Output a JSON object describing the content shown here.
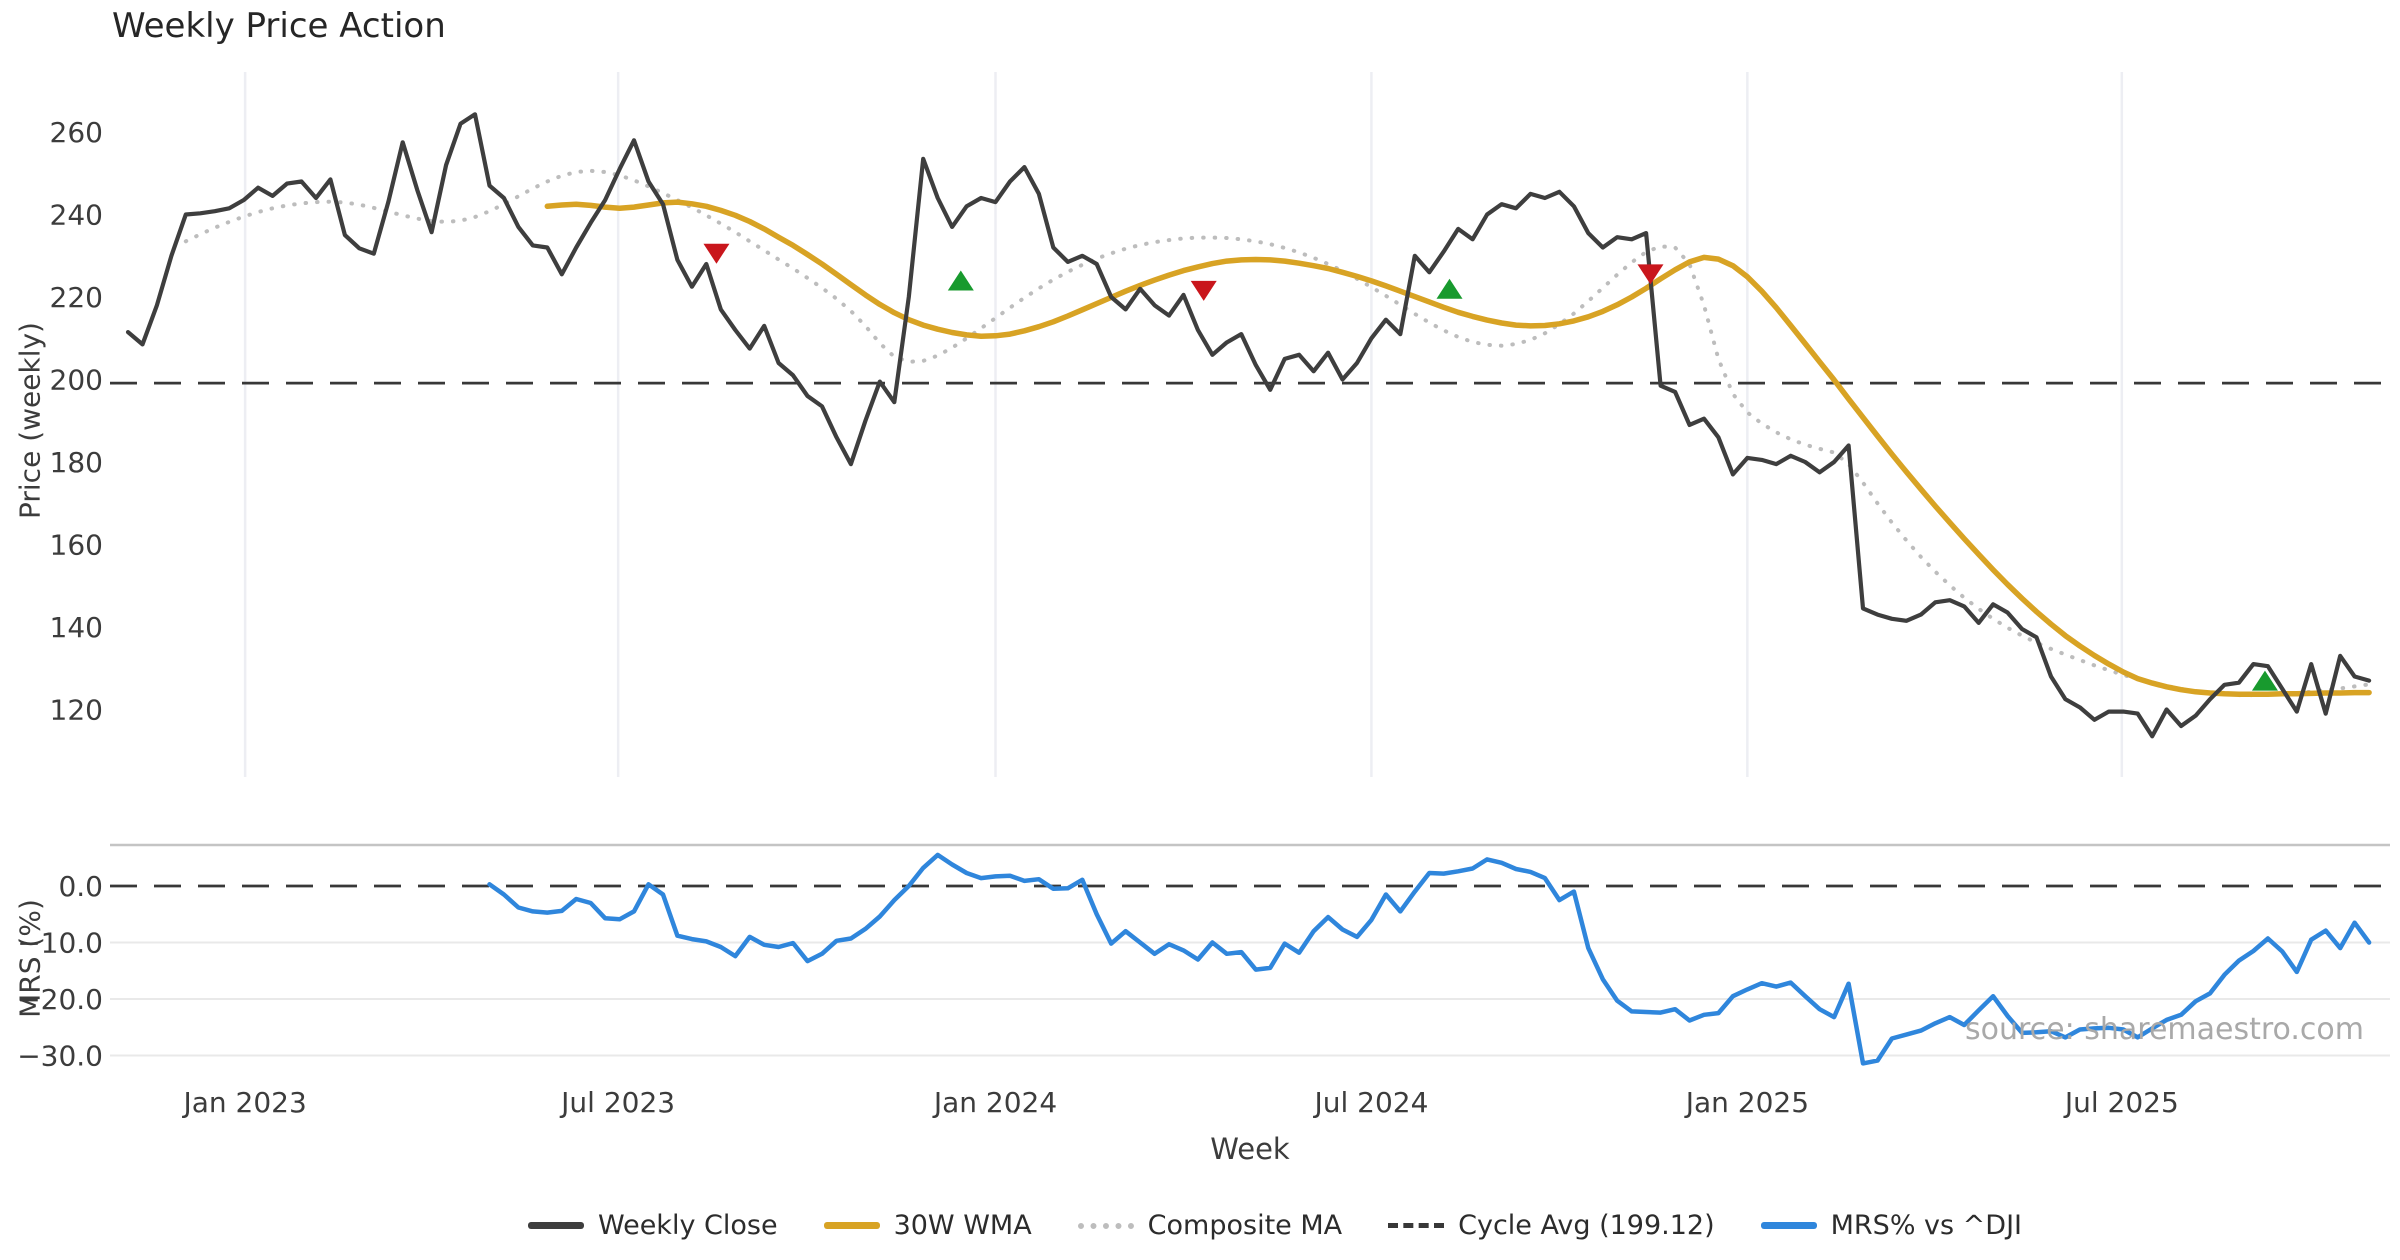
{
  "title": "Weekly Price Action",
  "watermark": "source: sharemaestro.com",
  "colors": {
    "weekly_close": "#3e3e3e",
    "wma30": "#d8a324",
    "composite_ma": "#bdbdbd",
    "cycle_avg": "#383838",
    "mrs": "#2f86dc",
    "buy_marker": "#189a2e",
    "sell_marker": "#c9161c",
    "grid_vertical": "#edeef3",
    "grid_horizontal": "#e9e9e9",
    "panel_spine": "#c4c4c4",
    "tick_text": "#3c3c3c"
  },
  "axes": {
    "x_label": "Week",
    "x_ticks": [
      {
        "week": 8.1,
        "label": "Jan 2023"
      },
      {
        "week": 33.9,
        "label": "Jul 2023"
      },
      {
        "week": 60.0,
        "label": "Jan 2024"
      },
      {
        "week": 86.0,
        "label": "Jul 2024"
      },
      {
        "week": 112.0,
        "label": "Jan 2025"
      },
      {
        "week": 137.9,
        "label": "Jul 2025"
      }
    ]
  },
  "legend": {
    "items": [
      {
        "label": "Weekly Close",
        "swatch": "solid",
        "color": "#3e3e3e"
      },
      {
        "label": "30W WMA",
        "swatch": "solid",
        "color": "#d8a324"
      },
      {
        "label": "Composite MA",
        "swatch": "dotted",
        "color": "#bdbdbd"
      },
      {
        "label": "Cycle Avg (199.12)",
        "swatch": "dashed",
        "color": "#383838"
      },
      {
        "label": "MRS% vs ^DJI",
        "swatch": "solid",
        "color": "#2f86dc"
      }
    ]
  },
  "chart_data": [
    {
      "type": "line",
      "panel": "price",
      "title": "Weekly Price Action",
      "xlabel": "Week",
      "ylabel": "Price (weekly)",
      "ylim": [
        103,
        274
      ],
      "yticks": [
        260,
        240,
        220,
        200,
        180,
        160,
        140,
        120
      ],
      "cycle_avg": 199.12,
      "x_unit": "weeks from Nov 2022",
      "series": [
        {
          "name": "Weekly Close",
          "start_week": 0,
          "values": [
            211.5,
            208.5,
            218,
            230,
            240,
            240.3,
            240.8,
            241.5,
            243.5,
            246.5,
            244.5,
            247.5,
            248,
            244,
            248.5,
            235,
            231.8,
            230.5,
            243,
            257.5,
            246,
            235.7,
            252,
            262,
            264.3,
            247,
            244,
            237,
            232.5,
            232,
            225.5,
            232,
            238,
            243.5,
            251,
            258,
            248,
            242.5,
            229,
            222.5,
            228,
            217,
            212,
            207.5,
            213,
            204,
            201,
            196,
            193.5,
            186,
            179.5,
            190,
            199.5,
            194.5,
            220,
            253.5,
            244,
            237,
            242,
            244,
            243,
            248,
            251.5,
            245,
            232,
            228.5,
            230,
            228,
            220,
            217,
            222,
            218,
            215.5,
            220.5,
            212,
            206,
            209,
            211,
            203.5,
            197.5,
            205,
            206,
            202,
            206.5,
            200,
            204,
            210,
            214.5,
            211,
            230,
            226,
            231,
            236.5,
            234,
            240,
            242.5,
            241.5,
            245,
            244,
            245.5,
            242,
            235.5,
            232,
            234.5,
            234,
            235.5,
            198.5,
            197,
            189,
            190.5,
            186,
            177,
            181,
            180.5,
            179.5,
            181.5,
            180,
            177.5,
            180,
            184,
            144.5,
            143,
            142,
            141.5,
            143,
            146,
            146.5,
            145,
            141,
            145.5,
            143.5,
            139.5,
            137.5,
            128,
            122.5,
            120.5,
            117.5,
            119.5,
            119.5,
            119,
            113.5,
            120,
            116,
            118.5,
            122.5,
            126,
            126.5,
            131,
            130.5,
            125,
            119.5,
            131,
            119,
            133,
            128,
            127
          ]
        },
        {
          "name": "30W WMA",
          "start_week": 29,
          "values": [
            242,
            242.3,
            242.5,
            242.2,
            241.8,
            241.5,
            241.8,
            242.3,
            242.8,
            243,
            242.6,
            242,
            241,
            239.8,
            238.3,
            236.5,
            234.5,
            232.5,
            230.3,
            228,
            225.5,
            223,
            220.5,
            218.2,
            216.2,
            214.5,
            213.2,
            212.2,
            211.4,
            210.8,
            210.5,
            210.6,
            211,
            211.8,
            212.8,
            214,
            215.4,
            216.9,
            218.4,
            219.9,
            221.4,
            222.8,
            224.1,
            225.3,
            226.4,
            227.3,
            228.1,
            228.7,
            229,
            229.1,
            229,
            228.7,
            228.2,
            227.6,
            226.9,
            226,
            225,
            223.9,
            222.7,
            221.4,
            220.1,
            218.8,
            217.5,
            216.3,
            215.3,
            214.4,
            213.7,
            213.2,
            213,
            213.1,
            213.5,
            214.2,
            215.2,
            216.5,
            218.1,
            220,
            222.1,
            224.4,
            226.6,
            228.5,
            229.6,
            229.2,
            227.6,
            224.9,
            221.4,
            217.4,
            213.1,
            208.7,
            204.3,
            199.9,
            195.3,
            190.8,
            186.3,
            181.9,
            177.6,
            173.4,
            169.3,
            165.3,
            161.4,
            157.6,
            153.9,
            150.3,
            146.9,
            143.7,
            140.7,
            137.9,
            135.4,
            133.1,
            131,
            129.1,
            127.5,
            126.4,
            125.5,
            124.8,
            124.3,
            124,
            123.8,
            123.7,
            123.7,
            123.7,
            123.8,
            123.8,
            123.9,
            124,
            124,
            124.1,
            124.1
          ]
        },
        {
          "name": "Composite MA",
          "start_week": 4,
          "values": [
            233.5,
            235.2,
            236.8,
            238.2,
            239.5,
            240.6,
            241.5,
            242.2,
            242.7,
            243,
            243.1,
            242.9,
            242.4,
            241.6,
            240.7,
            239.8,
            239,
            238.4,
            238.2,
            238.5,
            239.4,
            240.8,
            242.5,
            244.4,
            246.3,
            248,
            249.4,
            250.3,
            250.6,
            250.3,
            249.5,
            248.3,
            246.8,
            245.2,
            243.5,
            241.7,
            239.8,
            237.8,
            235.7,
            233.5,
            231.3,
            229.1,
            226.9,
            224.6,
            222.2,
            219.6,
            216.6,
            213,
            208.8,
            205.5,
            204.3,
            204.5,
            205.8,
            207.7,
            210,
            212.4,
            214.9,
            217.4,
            219.8,
            222.1,
            224.2,
            226.1,
            227.8,
            229.3,
            230.6,
            231.7,
            232.6,
            233.3,
            233.8,
            234.2,
            234.4,
            234.4,
            234.3,
            234,
            233.5,
            232.8,
            231.9,
            230.8,
            229.5,
            228,
            226.3,
            224.4,
            222.4,
            220.3,
            218.1,
            215.9,
            213.8,
            211.9,
            210.3,
            209.1,
            208.4,
            208.2,
            208.6,
            209.6,
            211.2,
            213.4,
            216,
            219,
            222.2,
            225.4,
            228.4,
            230.9,
            232.3,
            232,
            228,
            218,
            205,
            196.5,
            192,
            189.3,
            187.2,
            185.5,
            184.2,
            183.2,
            182.3,
            179.5,
            175,
            170,
            165.3,
            161,
            157,
            153.4,
            150.1,
            147.1,
            144.4,
            142,
            139.8,
            137.9,
            136.2,
            134.7,
            133.3,
            132,
            130.7,
            129.5,
            128.4,
            127.4,
            126.5,
            125.7,
            125,
            124.4,
            124,
            123.7,
            123.5,
            123.5,
            123.6,
            123.8,
            124,
            124.3,
            124.7,
            125.1,
            125.6,
            126.1
          ]
        }
      ],
      "markers": [
        {
          "week": 40.7,
          "price": 230.5,
          "type": "sell"
        },
        {
          "week": 57.6,
          "price": 224,
          "type": "buy"
        },
        {
          "week": 74.4,
          "price": 221.5,
          "type": "sell"
        },
        {
          "week": 91.4,
          "price": 222,
          "type": "buy"
        },
        {
          "week": 105.3,
          "price": 225.5,
          "type": "sell"
        },
        {
          "week": 147.8,
          "price": 127,
          "type": "buy"
        }
      ]
    },
    {
      "type": "line",
      "panel": "mrs",
      "ylabel": "MRS (%)",
      "ylim": [
        -33.5,
        7.3
      ],
      "yticks": [
        0,
        -10,
        -20,
        -30
      ],
      "ytick_labels": [
        "0.0",
        "−10.0",
        "−20.0",
        "−30.0"
      ],
      "zero_line": 0,
      "series": [
        {
          "name": "MRS% vs ^DJI",
          "start_week": 25,
          "values": [
            0.3,
            -1.5,
            -3.8,
            -4.5,
            -4.7,
            -4.4,
            -2.3,
            -3,
            -5.7,
            -5.9,
            -4.5,
            0.3,
            -1.5,
            -8.8,
            -9.4,
            -9.8,
            -10.8,
            -12.4,
            -9,
            -10.4,
            -10.8,
            -10.1,
            -13.3,
            -12,
            -9.7,
            -9.3,
            -7.6,
            -5.4,
            -2.5,
            0,
            3.2,
            5.5,
            3.8,
            2.3,
            1.4,
            1.7,
            1.8,
            0.9,
            1.2,
            -0.5,
            -0.4,
            1.1,
            -5,
            -10.2,
            -8,
            -10,
            -12,
            -10.3,
            -11.4,
            -13,
            -10,
            -12,
            -11.7,
            -14.8,
            -14.5,
            -10.2,
            -11.8,
            -8,
            -5.5,
            -7.7,
            -9,
            -6,
            -1.5,
            -4.5,
            -1,
            2.3,
            2.2,
            2.6,
            3.1,
            4.7,
            4.1,
            3,
            2.5,
            1.4,
            -2.5,
            -1,
            -11,
            -16.5,
            -20.3,
            -22.2,
            -22.3,
            -22.4,
            -21.8,
            -23.8,
            -22.8,
            -22.5,
            -19.5,
            -18.3,
            -17.2,
            -17.8,
            -17.1,
            -19.5,
            -21.8,
            -23.2,
            -17.3,
            -31.4,
            -30.9,
            -27,
            -26.3,
            -25.6,
            -24.3,
            -23.2,
            -24.6,
            -22,
            -19.5,
            -23,
            -26,
            -25.9,
            -25.7,
            -26.8,
            -25.4,
            -25.2,
            -25.1,
            -25.4,
            -26.8,
            -25.2,
            -23.7,
            -22.8,
            -20.4,
            -19,
            -15.7,
            -13.2,
            -11.5,
            -9.3,
            -11.6,
            -15.2,
            -9.5,
            -7.9,
            -11,
            -6.5,
            -10
          ]
        }
      ]
    }
  ]
}
